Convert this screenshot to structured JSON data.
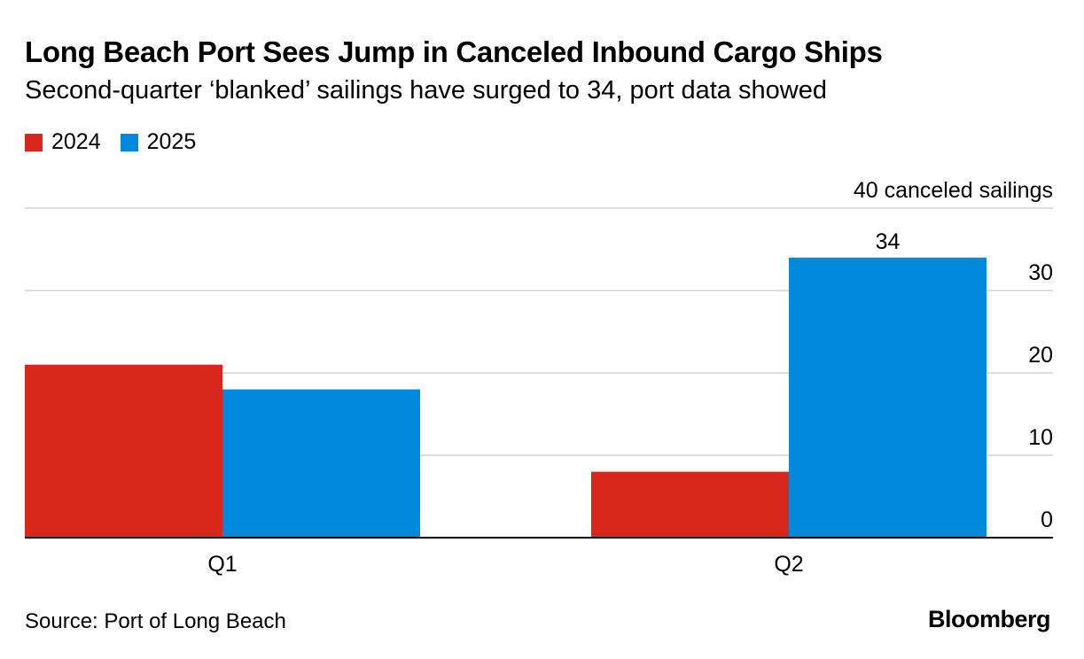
{
  "header": {
    "title": "Long Beach Port Sees Jump in Canceled Inbound Cargo Ships",
    "subtitle": "Second-quarter ‘blanked’ sailings have surged to 34, port data showed"
  },
  "footer": {
    "source": "Source: Port of Long Beach",
    "brand": "Bloomberg"
  },
  "colors": {
    "series_2024": "#d9261c",
    "series_2025": "#0088dd",
    "grid": "#dddddd",
    "baseline": "#000000"
  },
  "chart_data": {
    "type": "bar",
    "categories": [
      "Q1",
      "Q2"
    ],
    "series": [
      {
        "name": "2024",
        "values": [
          21,
          8
        ]
      },
      {
        "name": "2025",
        "values": [
          18,
          34
        ]
      }
    ],
    "yticks": [
      0,
      10,
      20,
      30,
      40
    ],
    "ytick_labels": [
      "0",
      "10",
      "20",
      "30",
      "40 canceled sailings"
    ],
    "ylim": [
      0,
      40
    ],
    "data_labels": [
      {
        "category": "Q2",
        "series": "2025",
        "text": "34"
      }
    ],
    "legend_position": "top-left",
    "y_axis_side": "right",
    "grid": true
  }
}
